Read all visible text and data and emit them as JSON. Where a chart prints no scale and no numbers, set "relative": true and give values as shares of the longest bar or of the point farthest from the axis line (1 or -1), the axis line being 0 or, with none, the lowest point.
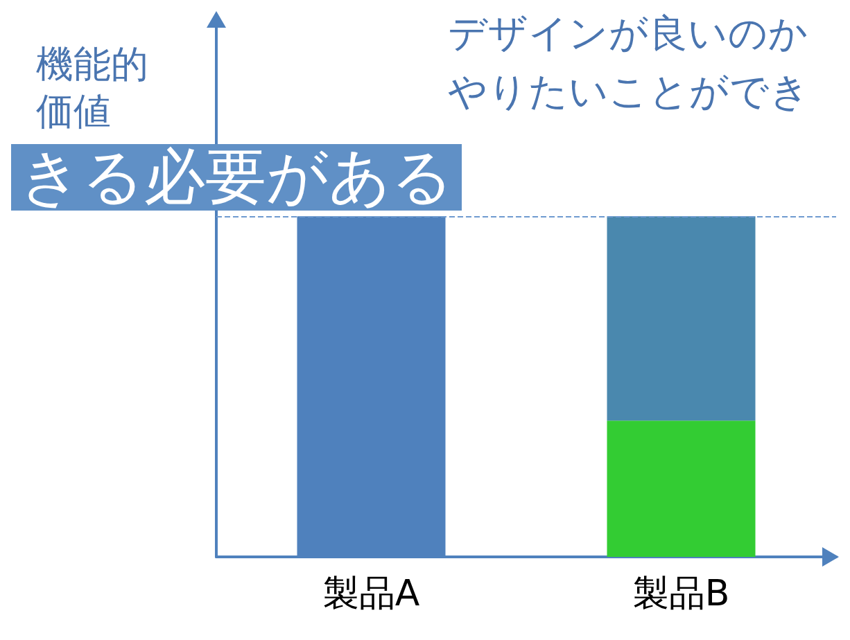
{
  "chart_data": {
    "type": "bar",
    "relative": true,
    "stacked": true,
    "ylabel": "機能的価値",
    "categories": [
      "製品A",
      "製品B"
    ],
    "series": [
      {
        "color": "#4f81bd",
        "values": [
          1,
          null
        ]
      },
      {
        "color": "#33cc33",
        "values": [
          null,
          0.4
        ]
      },
      {
        "color": "#4a88ae",
        "values": [
          null,
          0.6
        ]
      }
    ],
    "ref_lines": [
      {
        "axis": "y",
        "value": 1,
        "color": "#6f9bd0",
        "line_style": "dashed"
      }
    ],
    "annotations": [
      "きる必要がある",
      "デザインが良いのか",
      "やりたいことができ"
    ],
    "grid": false
  }
}
